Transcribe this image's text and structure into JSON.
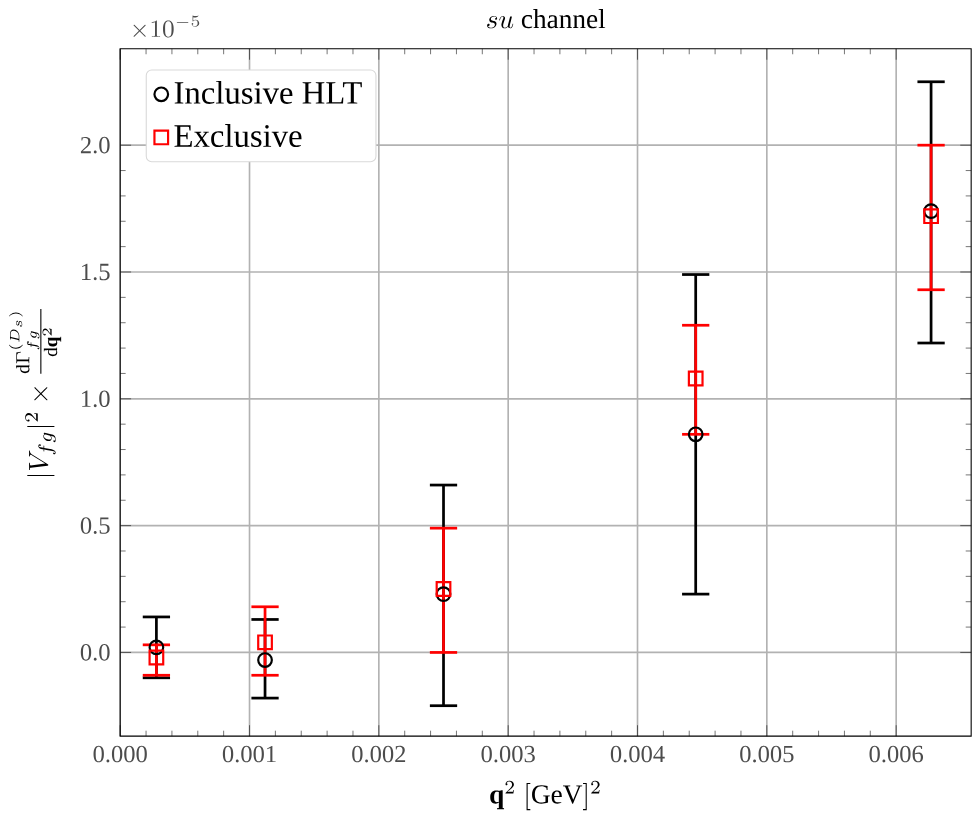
{
  "chart_data": {
    "type": "scatter",
    "title": "su\\ \\mathrm{channel}",
    "xlabel": "\\mathbf{q}^2\\ [\\mathrm{GeV}]^2",
    "ylabel": "|V_{fg}|^2\\times\\frac{\\mathrm{d}\\Gamma^{(D_s)}_{fg}}{\\mathrm{d}\\mathbf{q}^2}",
    "annotations": [
      "\\times10^{-5}"
    ],
    "x": [
      0.00028,
      0.00112,
      0.0025,
      0.00445,
      0.00627
    ],
    "series": [
      {
        "name": "Inclusive HLT",
        "color": "#000000",
        "marker": "circle",
        "values": [
          0.02,
          -0.03,
          0.23,
          0.86,
          1.74
        ],
        "errors": [
          [
            -0.1,
            0.14
          ],
          [
            -0.18,
            0.13
          ],
          [
            -0.21,
            0.66
          ],
          [
            0.23,
            1.49
          ],
          [
            1.22,
            2.25
          ]
        ]
      },
      {
        "name": "Exclusive",
        "color": "#ff0000",
        "marker": "square",
        "values": [
          -0.02,
          0.04,
          0.25,
          1.08,
          1.72
        ],
        "errors": [
          [
            -0.09,
            0.03
          ],
          [
            -0.09,
            0.18
          ],
          [
            0.0,
            0.49
          ],
          [
            0.86,
            1.29
          ],
          [
            1.43,
            2.0
          ]
        ]
      }
    ],
    "xlim": [
      0.0,
      0.00658
    ],
    "ylim": [
      -0.33,
      2.38
    ],
    "xticks": [
      {
        "value": 0.0,
        "label": "0.000"
      },
      {
        "value": 0.001,
        "label": "0.001"
      },
      {
        "value": 0.002,
        "label": "0.002"
      },
      {
        "value": 0.003,
        "label": "0.003"
      },
      {
        "value": 0.004,
        "label": "0.004"
      },
      {
        "value": 0.005,
        "label": "0.005"
      },
      {
        "value": 0.006,
        "label": "0.006"
      }
    ],
    "yticks": [
      {
        "value": 0.0,
        "label": "0.0"
      },
      {
        "value": 0.5,
        "label": "0.5"
      },
      {
        "value": 1.0,
        "label": "1.0"
      },
      {
        "value": 1.5,
        "label": "1.5"
      },
      {
        "value": 2.0,
        "label": "2.0"
      }
    ],
    "grid": true,
    "legend": "top left"
  }
}
